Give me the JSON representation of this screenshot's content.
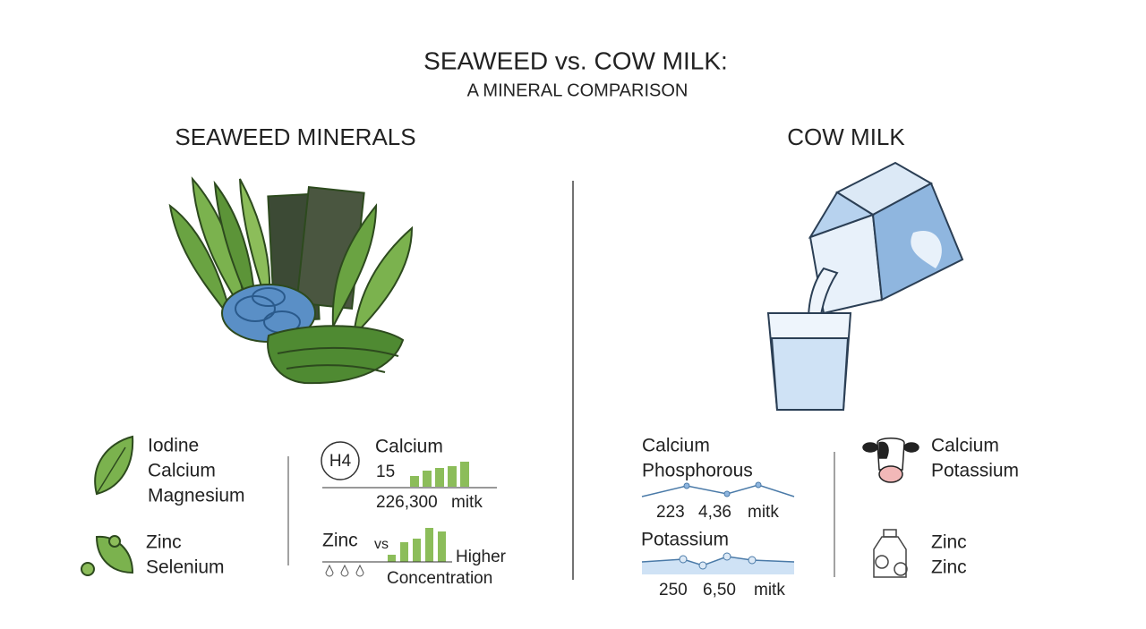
{
  "header": {
    "title": "SEAWEED vs. COW MILK:",
    "subtitle": "A MINERAL COMPARISON"
  },
  "seaweed": {
    "heading": "SEAWEED MINERALS",
    "list_1": [
      "Iodine",
      "Calcium",
      "Magnesium"
    ],
    "list_2": [
      "Zinc",
      "Selenium"
    ],
    "panel_1": {
      "badge": "H4",
      "label": "Calcium",
      "number": "15",
      "caption": [
        "226,300",
        "mitk"
      ]
    },
    "panel_2": {
      "label": "Zinc",
      "vs": "vs",
      "note": [
        "Higher",
        "Concentration"
      ]
    }
  },
  "milk": {
    "heading": "COW MILK",
    "panel_1": {
      "labels": [
        "Calcium",
        "Phosphorous"
      ],
      "caption": [
        "223",
        "4,36",
        "mitk"
      ]
    },
    "panel_2": {
      "label": "Potassium",
      "caption": [
        "250",
        "6,50",
        "mitk"
      ]
    },
    "list_1": [
      "Calcium",
      "Potassium"
    ],
    "list_2": [
      "Zinc",
      "Zinc"
    ]
  }
}
